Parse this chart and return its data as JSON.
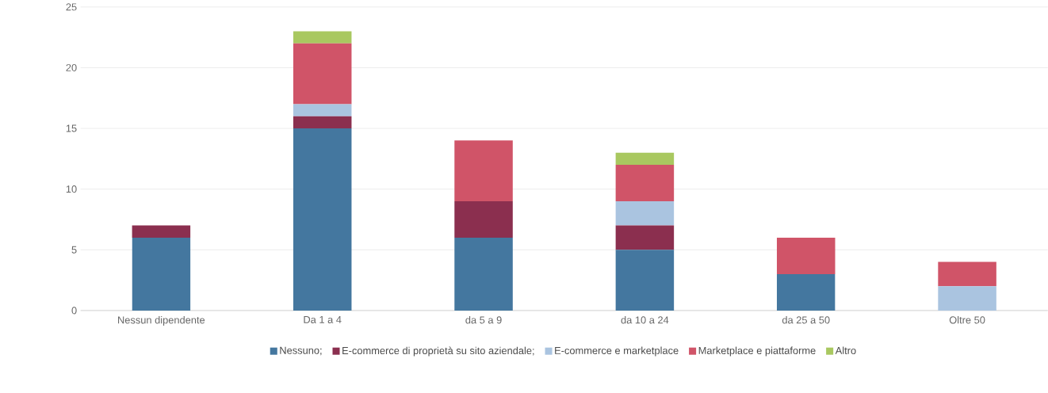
{
  "chart_data": {
    "type": "bar",
    "stacked": true,
    "categories": [
      "Nessun dipendente",
      "Da 1 a 4",
      "da 5 a 9",
      "da 10 a 24",
      "da 25 a 50",
      "Oltre 50"
    ],
    "series": [
      {
        "name": "Nessuno;",
        "color": "#44779f",
        "values": [
          6,
          15,
          6,
          5,
          3,
          0
        ]
      },
      {
        "name": "E-commerce di proprietà su sito aziendale;",
        "color": "#8b2f4f",
        "values": [
          1,
          1,
          3,
          2,
          0,
          0
        ]
      },
      {
        "name": "E-commerce e marketplace",
        "color": "#aac4e0",
        "values": [
          0,
          1,
          0,
          2,
          0,
          2
        ]
      },
      {
        "name": "Marketplace e piattaforme",
        "color": "#d05468",
        "values": [
          0,
          5,
          5,
          3,
          3,
          2
        ]
      },
      {
        "name": "Altro",
        "color": "#a9c860",
        "values": [
          0,
          1,
          0,
          1,
          0,
          0
        ]
      }
    ],
    "ylim": [
      0,
      25
    ],
    "yticks": [
      0,
      5,
      10,
      15,
      20,
      25
    ],
    "grid": "y",
    "legend": "bottom"
  }
}
